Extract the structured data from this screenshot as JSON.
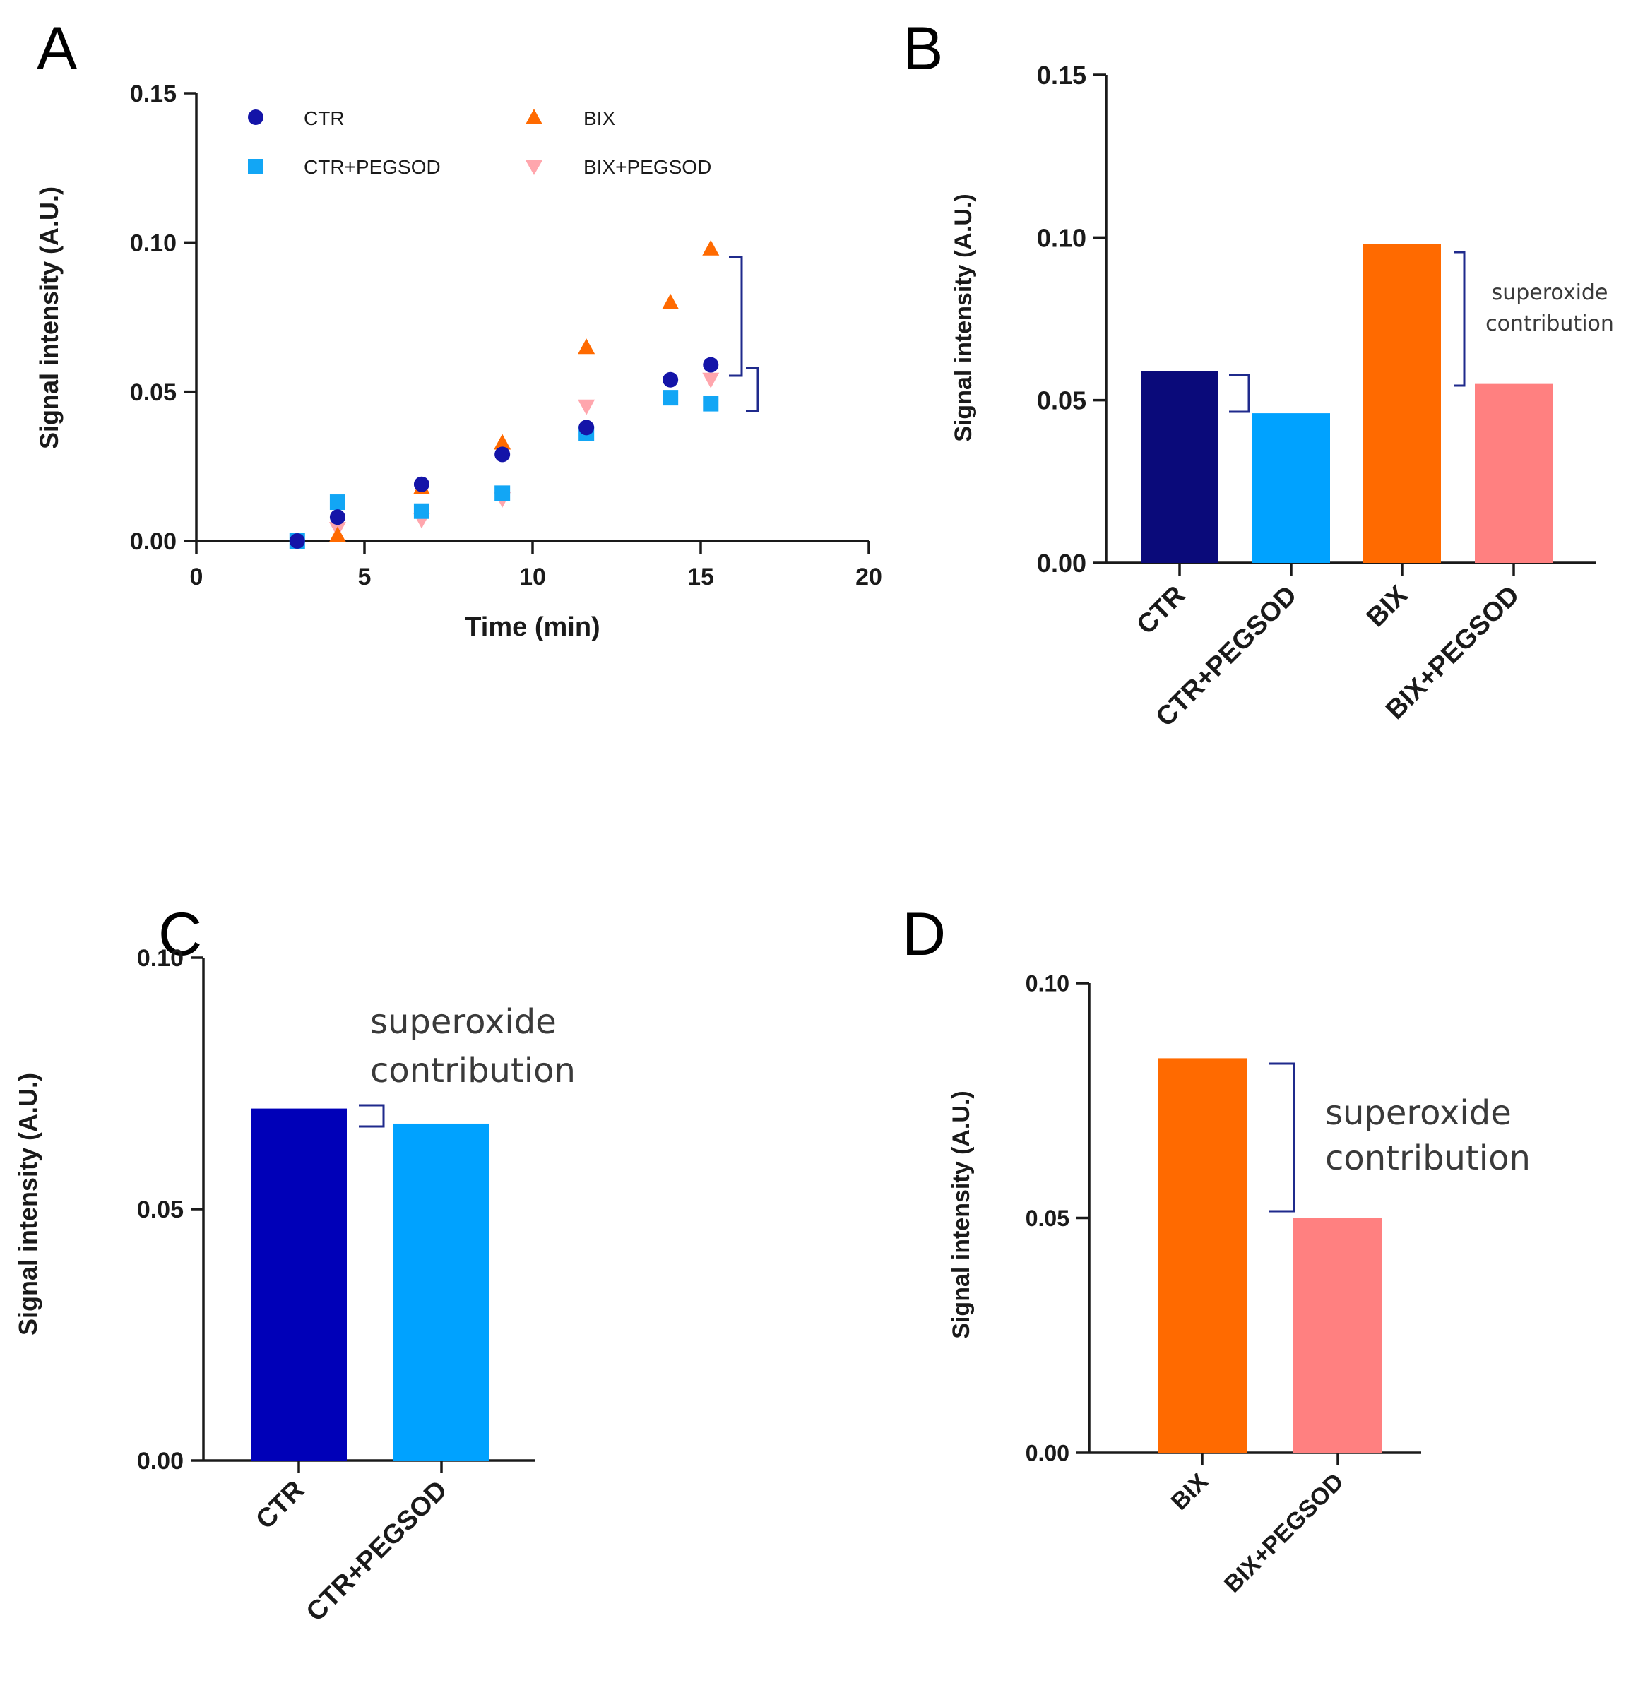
{
  "colors": {
    "ctr_a": "#1414a8",
    "ctr_b": "#0a0a7a",
    "ctr_c": "#0000b8",
    "ctr_pegsod": "#12a6f5",
    "ctr_pegsod_bar": "#00a2ff",
    "bix": "#ff6a00",
    "bix_pegsod_a": "#ffa6ad",
    "bix_pegsod_bar": "#ff8080",
    "bracket": "#1f2a8c"
  },
  "panels": {
    "A": {
      "letter": "A"
    },
    "B": {
      "letter": "B"
    },
    "C": {
      "letter": "C"
    },
    "D": {
      "letter": "D"
    }
  },
  "chart_data": [
    {
      "id": "A",
      "type": "scatter",
      "title": "",
      "xlabel": "Time (min)",
      "ylabel": "Signal intensity (A.U.)",
      "xlim": [
        0,
        20
      ],
      "ylim": [
        0,
        0.15
      ],
      "xticks": [
        "0",
        "5",
        "10",
        "15",
        "20"
      ],
      "yticks": [
        "0.00",
        "0.05",
        "0.10",
        "0.15"
      ],
      "legend": [
        "CTR",
        "BIX",
        "CTR+PEGSOD",
        "BIX+PEGSOD"
      ],
      "series": [
        {
          "name": "CTR",
          "marker": "circle",
          "x": [
            3.0,
            4.2,
            6.7,
            9.1,
            11.6,
            14.1,
            15.3
          ],
          "y": [
            0.0,
            0.008,
            0.019,
            0.029,
            0.038,
            0.054,
            0.059
          ]
        },
        {
          "name": "BIX",
          "marker": "triangle",
          "x": [
            4.2,
            6.7,
            9.1,
            11.6,
            14.1,
            15.3
          ],
          "y": [
            0.002,
            0.018,
            0.033,
            0.065,
            0.08,
            0.098
          ]
        },
        {
          "name": "CTR+PEGSOD",
          "marker": "square",
          "x": [
            3.0,
            4.2,
            6.7,
            9.1,
            11.6,
            14.1,
            15.3
          ],
          "y": [
            0.0,
            0.013,
            0.01,
            0.016,
            0.036,
            0.048,
            0.046
          ]
        },
        {
          "name": "BIX+PEGSOD",
          "marker": "triangle-down",
          "x": [
            4.2,
            6.7,
            9.1,
            11.6,
            15.3
          ],
          "y": [
            0.004,
            0.007,
            0.014,
            0.045,
            0.054
          ]
        }
      ]
    },
    {
      "id": "B",
      "type": "bar",
      "title": "",
      "xlabel": "",
      "ylabel": "Signal intensity (A.U.)",
      "ylim": [
        0,
        0.15
      ],
      "yticks": [
        "0.00",
        "0.05",
        "0.10",
        "0.15"
      ],
      "categories": [
        "CTR",
        "CTR+PEGSOD",
        "BIX",
        "BIX+PEGSOD"
      ],
      "values": [
        0.059,
        0.046,
        0.098,
        0.055
      ],
      "annotation": [
        "superoxide",
        "contribution"
      ]
    },
    {
      "id": "C",
      "type": "bar",
      "title": "",
      "xlabel": "",
      "ylabel": "Signal intensity (A.U.)",
      "ylim": [
        0,
        0.1
      ],
      "yticks": [
        "0.00",
        "0.05",
        "0.10"
      ],
      "categories": [
        "CTR",
        "CTR+PEGSOD"
      ],
      "values": [
        0.07,
        0.067
      ],
      "annotation": [
        "superoxide",
        "contribution"
      ]
    },
    {
      "id": "D",
      "type": "bar",
      "title": "",
      "xlabel": "",
      "ylabel": "Signal intensity (A.U.)",
      "ylim": [
        0,
        0.1
      ],
      "yticks": [
        "0.00",
        "0.05",
        "0.10"
      ],
      "categories": [
        "BIX",
        "BIX+PEGSOD"
      ],
      "values": [
        0.084,
        0.05
      ],
      "annotation": [
        "superoxide",
        "contribution"
      ]
    }
  ]
}
